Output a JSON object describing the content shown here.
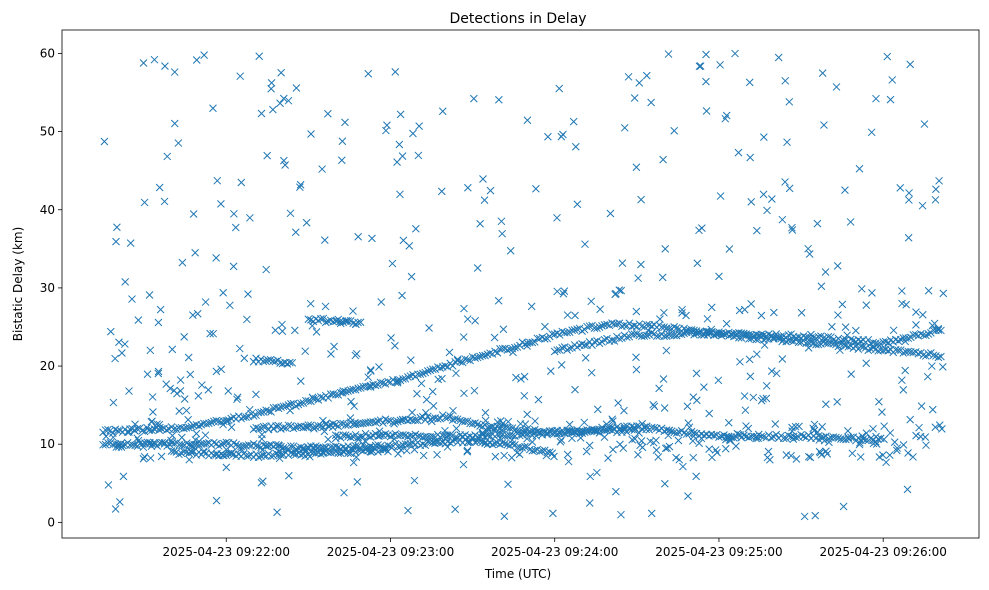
{
  "chart_data": {
    "type": "scatter",
    "title": "Detections in Delay",
    "xlabel": "Time (UTC)",
    "ylabel": "Bistatic Delay (km)",
    "marker": "x",
    "marker_color": "#1f77b4",
    "x_is_time": true,
    "xlim": [
      "2025-04-23 09:21:00",
      "2025-04-23 09:26:35"
    ],
    "ylim": [
      -2,
      63
    ],
    "xticks": [
      "2025-04-23 09:22:00",
      "2025-04-23 09:23:00",
      "2025-04-23 09:24:00",
      "2025-04-23 09:25:00",
      "2025-04-23 09:26:00"
    ],
    "yticks": [
      0,
      10,
      20,
      30,
      40,
      50,
      60
    ],
    "grid": false,
    "legend": "none",
    "data_start": "2025-04-23 09:21:15",
    "data_end": "2025-04-23 09:26:22",
    "tracks": [
      {
        "description": "rising track",
        "points": [
          [
            "2025-04-23 09:21:15",
            11.6
          ],
          [
            "2025-04-23 09:21:40",
            12.0
          ],
          [
            "2025-04-23 09:22:00",
            13.0
          ],
          [
            "2025-04-23 09:22:30",
            15.5
          ],
          [
            "2025-04-23 09:23:00",
            18.0
          ],
          [
            "2025-04-23 09:23:30",
            21.0
          ],
          [
            "2025-04-23 09:24:00",
            24.0
          ],
          [
            "2025-04-23 09:24:20",
            25.4
          ],
          [
            "2025-04-23 09:24:40",
            25.0
          ],
          [
            "2025-04-23 09:25:00",
            24.0
          ],
          [
            "2025-04-23 09:25:30",
            23.2
          ],
          [
            "2025-04-23 09:26:00",
            22.0
          ],
          [
            "2025-04-23 09:26:22",
            21.3
          ]
        ]
      },
      {
        "description": "upper return track",
        "points": [
          [
            "2025-04-23 09:24:00",
            22.0
          ],
          [
            "2025-04-23 09:24:30",
            24.0
          ],
          [
            "2025-04-23 09:25:00",
            24.2
          ],
          [
            "2025-04-23 09:25:30",
            23.8
          ],
          [
            "2025-04-23 09:26:00",
            23.0
          ],
          [
            "2025-04-23 09:26:22",
            24.6
          ]
        ]
      },
      {
        "description": "short segment near 25.5",
        "points": [
          [
            "2025-04-23 09:22:30",
            26.0
          ],
          [
            "2025-04-23 09:22:50",
            25.5
          ]
        ]
      },
      {
        "description": "short segment near 20.5",
        "points": [
          [
            "2025-04-23 09:22:10",
            20.8
          ],
          [
            "2025-04-23 09:22:25",
            20.3
          ]
        ]
      },
      {
        "description": "track near 12",
        "points": [
          [
            "2025-04-23 09:22:10",
            12.0
          ],
          [
            "2025-04-23 09:22:40",
            12.5
          ],
          [
            "2025-04-23 09:23:00",
            13.0
          ],
          [
            "2025-04-23 09:23:20",
            13.5
          ],
          [
            "2025-04-23 09:23:40",
            12.0
          ],
          [
            "2025-04-23 09:24:00",
            11.5
          ],
          [
            "2025-04-23 09:24:30",
            12.2
          ],
          [
            "2025-04-23 09:25:00",
            11.0
          ],
          [
            "2025-04-23 09:25:30",
            11.0
          ],
          [
            "2025-04-23 09:26:00",
            10.5
          ]
        ]
      },
      {
        "description": "track near 10",
        "points": [
          [
            "2025-04-23 09:21:15",
            10.0
          ],
          [
            "2025-04-23 09:22:00",
            10.0
          ],
          [
            "2025-04-23 09:22:30",
            9.5
          ],
          [
            "2025-04-23 09:23:00",
            9.8
          ],
          [
            "2025-04-23 09:23:30",
            10.5
          ],
          [
            "2025-04-23 09:24:00",
            9.0
          ]
        ]
      },
      {
        "description": "track near 11",
        "points": [
          [
            "2025-04-23 09:22:40",
            11.0
          ],
          [
            "2025-04-23 09:23:00",
            11.2
          ],
          [
            "2025-04-23 09:23:30",
            11.0
          ],
          [
            "2025-04-23 09:24:00",
            11.5
          ],
          [
            "2025-04-23 09:24:30",
            11.8
          ]
        ]
      },
      {
        "description": "track near 9",
        "points": [
          [
            "2025-04-23 09:21:40",
            9.0
          ],
          [
            "2025-04-23 09:22:10",
            8.5
          ],
          [
            "2025-04-23 09:22:40",
            9.0
          ],
          [
            "2025-04-23 09:23:00",
            9.2
          ]
        ]
      }
    ],
    "noise": {
      "y_range": [
        0.5,
        60
      ],
      "estimated_count": 700
    }
  }
}
